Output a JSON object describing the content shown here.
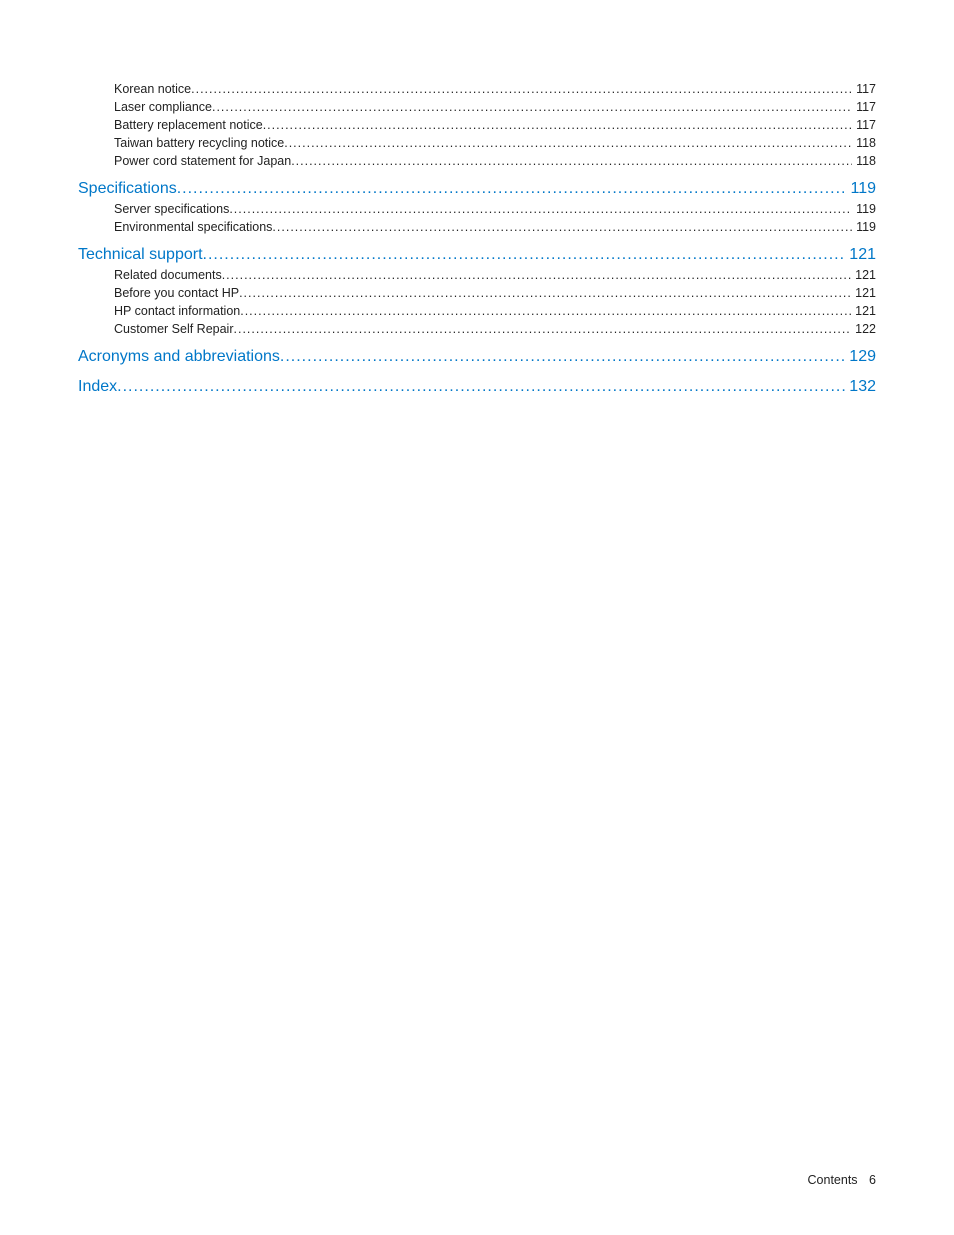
{
  "colors": {
    "link": "#0077c8",
    "text": "#222222",
    "background": "#ffffff"
  },
  "typography": {
    "heading_fontsize_pt": 12,
    "sub_fontsize_pt": 9.5,
    "font_family": "Arial"
  },
  "toc": [
    {
      "level": 1,
      "label": "Korean notice",
      "page": "117"
    },
    {
      "level": 1,
      "label": "Laser compliance",
      "page": "117"
    },
    {
      "level": 1,
      "label": "Battery replacement notice",
      "page": "117"
    },
    {
      "level": 1,
      "label": "Taiwan battery recycling notice",
      "page": "118"
    },
    {
      "level": 1,
      "label": "Power cord statement for Japan",
      "page": "118"
    },
    {
      "level": 0,
      "label": "Specifications",
      "page": "119"
    },
    {
      "level": 1,
      "label": "Server specifications",
      "page": "119"
    },
    {
      "level": 1,
      "label": "Environmental specifications",
      "page": "119"
    },
    {
      "level": 0,
      "label": "Technical support",
      "page": "121"
    },
    {
      "level": 1,
      "label": "Related documents",
      "page": "121"
    },
    {
      "level": 1,
      "label": "Before you contact HP",
      "page": "121"
    },
    {
      "level": 1,
      "label": "HP contact information",
      "page": "121"
    },
    {
      "level": 1,
      "label": "Customer Self Repair",
      "page": "122"
    },
    {
      "level": 0,
      "label": "Acronyms and abbreviations",
      "page": "129"
    },
    {
      "level": 0,
      "label": "Index",
      "page": "132"
    }
  ],
  "footer": {
    "label": "Contents",
    "page": "6"
  }
}
